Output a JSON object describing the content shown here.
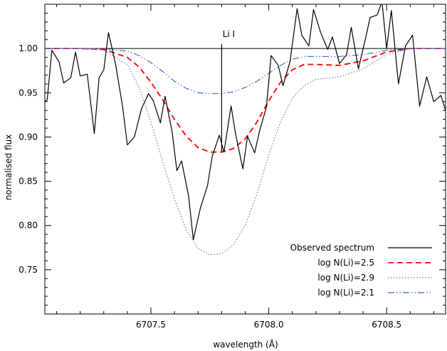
{
  "chart_data": {
    "type": "line",
    "xlabel": "wavelength (Å)",
    "ylabel": "normalised flux",
    "xlim": [
      6707.05,
      6708.75
    ],
    "ylim": [
      0.7,
      1.05
    ],
    "grid": false,
    "legend_position": "bottom-right",
    "x_ticks": [
      6707.5,
      6708.0,
      6708.5
    ],
    "x_tick_labels": [
      "6707.5",
      "6708.0",
      "6708.5"
    ],
    "y_ticks": [
      0.75,
      0.8,
      0.85,
      0.9,
      0.95,
      1.0
    ],
    "y_tick_labels": [
      "0.75",
      "0.80",
      "0.85",
      "0.90",
      "0.95",
      "1.00"
    ],
    "reference_line": {
      "y": 1.0,
      "color": "#000000"
    },
    "annotation": {
      "text": "Li I",
      "x": 6707.8,
      "y_from": 0.883,
      "y_to": 1.005
    },
    "series": [
      {
        "name": "Observed spectrum",
        "color": "#000000",
        "dash": "solid",
        "x": [
          6707.05,
          6707.06,
          6707.08,
          6707.11,
          6707.13,
          6707.16,
          6707.18,
          6707.2,
          6707.23,
          6707.26,
          6707.28,
          6707.3,
          6707.32,
          6707.35,
          6707.38,
          6707.4,
          6707.43,
          6707.46,
          6707.49,
          6707.51,
          6707.54,
          6707.56,
          6707.59,
          6707.61,
          6707.63,
          6707.66,
          6707.68,
          6707.71,
          6707.74,
          6707.76,
          6707.79,
          6707.81,
          6707.84,
          6707.86,
          6707.89,
          6707.91,
          6707.94,
          6707.96,
          6707.99,
          6708.01,
          6708.04,
          6708.06,
          6708.09,
          6708.12,
          6708.14,
          6708.17,
          6708.19,
          6708.22,
          6708.25,
          6708.27,
          6708.3,
          6708.33,
          6708.35,
          6708.38,
          6708.41,
          6708.43,
          6708.46,
          6708.48,
          6708.5,
          6708.52,
          6708.55,
          6708.58,
          6708.61,
          6708.64,
          6708.67,
          6708.7,
          6708.73,
          6708.75
        ],
        "y": [
          0.94,
          0.942,
          0.998,
          0.985,
          0.961,
          0.967,
          0.996,
          0.969,
          0.971,
          0.904,
          0.967,
          0.976,
          1.018,
          0.982,
          0.934,
          0.891,
          0.9,
          0.932,
          0.949,
          0.941,
          0.916,
          0.946,
          0.906,
          0.862,
          0.873,
          0.833,
          0.784,
          0.82,
          0.845,
          0.878,
          0.902,
          0.883,
          0.935,
          0.902,
          0.864,
          0.901,
          0.882,
          0.906,
          0.934,
          0.992,
          0.981,
          0.958,
          0.985,
          1.045,
          1.015,
          1.003,
          1.044,
          1.018,
          0.999,
          1.013,
          0.983,
          0.993,
          1.024,
          0.977,
          1.011,
          1.035,
          1.038,
          1.053,
          1.0,
          1.043,
          0.96,
          1.003,
          1.015,
          0.935,
          0.968,
          0.94,
          0.947,
          0.93
        ]
      },
      {
        "name": "log N(Li)=2.5",
        "color": "#ff0000",
        "dash": "dashed",
        "x": [
          6707.05,
          6707.2,
          6707.3,
          6707.4,
          6707.45,
          6707.5,
          6707.55,
          6707.6,
          6707.65,
          6707.7,
          6707.75,
          6707.8,
          6707.85,
          6707.9,
          6707.95,
          6708.0,
          6708.05,
          6708.1,
          6708.15,
          6708.2,
          6708.3,
          6708.4,
          6708.5,
          6708.6,
          6708.75
        ],
        "y": [
          1.0,
          1.0,
          0.999,
          0.99,
          0.979,
          0.962,
          0.942,
          0.92,
          0.901,
          0.888,
          0.883,
          0.883,
          0.887,
          0.898,
          0.917,
          0.941,
          0.962,
          0.976,
          0.982,
          0.982,
          0.981,
          0.986,
          0.996,
          1.0,
          1.0
        ]
      },
      {
        "name": "log N(Li)=2.9",
        "color": "#4a6fd8",
        "dash": "dotted",
        "x": [
          6707.05,
          6707.2,
          6707.3,
          6707.4,
          6707.45,
          6707.5,
          6707.55,
          6707.6,
          6707.65,
          6707.7,
          6707.75,
          6707.8,
          6707.85,
          6707.9,
          6707.95,
          6708.0,
          6708.05,
          6708.1,
          6708.15,
          6708.2,
          6708.3,
          6708.4,
          6708.5,
          6708.6,
          6708.75
        ],
        "y": [
          1.0,
          1.0,
          0.998,
          0.982,
          0.956,
          0.917,
          0.872,
          0.83,
          0.795,
          0.774,
          0.767,
          0.768,
          0.778,
          0.8,
          0.836,
          0.88,
          0.917,
          0.944,
          0.958,
          0.965,
          0.968,
          0.977,
          0.993,
          1.0,
          1.0
        ]
      },
      {
        "name": "log N(Li)=2.1",
        "color": "#2f63d6",
        "dash": "dashdotdot",
        "x": [
          6707.05,
          6707.2,
          6707.3,
          6707.4,
          6707.45,
          6707.5,
          6707.55,
          6707.6,
          6707.65,
          6707.7,
          6707.75,
          6707.8,
          6707.85,
          6707.9,
          6707.95,
          6708.0,
          6708.05,
          6708.1,
          6708.15,
          6708.2,
          6708.3,
          6708.4,
          6708.5,
          6708.6,
          6708.75
        ],
        "y": [
          1.0,
          1.0,
          1.0,
          0.997,
          0.992,
          0.984,
          0.974,
          0.963,
          0.955,
          0.95,
          0.949,
          0.949,
          0.951,
          0.956,
          0.963,
          0.972,
          0.981,
          0.988,
          0.991,
          0.991,
          0.991,
          0.993,
          0.998,
          1.0,
          1.0
        ]
      }
    ]
  }
}
